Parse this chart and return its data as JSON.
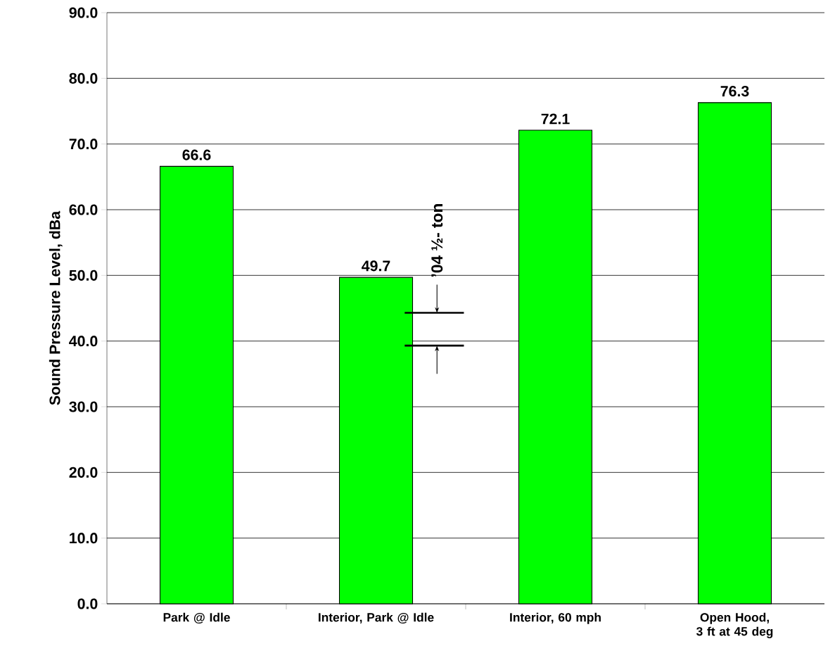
{
  "chart_data": {
    "type": "bar",
    "ylabel": "Sound Pressure Level, dBa",
    "categories": [
      "Park @ Idle",
      "Interior, Park @ Idle",
      "Interior, 60 mph",
      "Open Hood, 3 ft at 45 deg"
    ],
    "values": [
      66.6,
      49.7,
      72.1,
      76.3
    ],
    "color": "#00ff00",
    "data_labels": true,
    "ylim": [
      0,
      90
    ],
    "yticks": [
      {
        "value": 0,
        "label": "0.0"
      },
      {
        "value": 10,
        "label": "10.0"
      },
      {
        "value": 20,
        "label": "20.0"
      },
      {
        "value": 30,
        "label": "30.0"
      },
      {
        "value": 40,
        "label": "40.0"
      },
      {
        "value": 50,
        "label": "50.0"
      },
      {
        "value": 60,
        "label": "60.0"
      },
      {
        "value": 70,
        "label": "70.0"
      },
      {
        "value": 80,
        "label": "80.0"
      },
      {
        "value": 90,
        "label": "90.0"
      }
    ],
    "grid": "y",
    "ref_lines": [
      {
        "axis": "y",
        "value": 44.3,
        "label": "’04 ½- ton"
      },
      {
        "axis": "y",
        "value": 39.3
      }
    ]
  }
}
